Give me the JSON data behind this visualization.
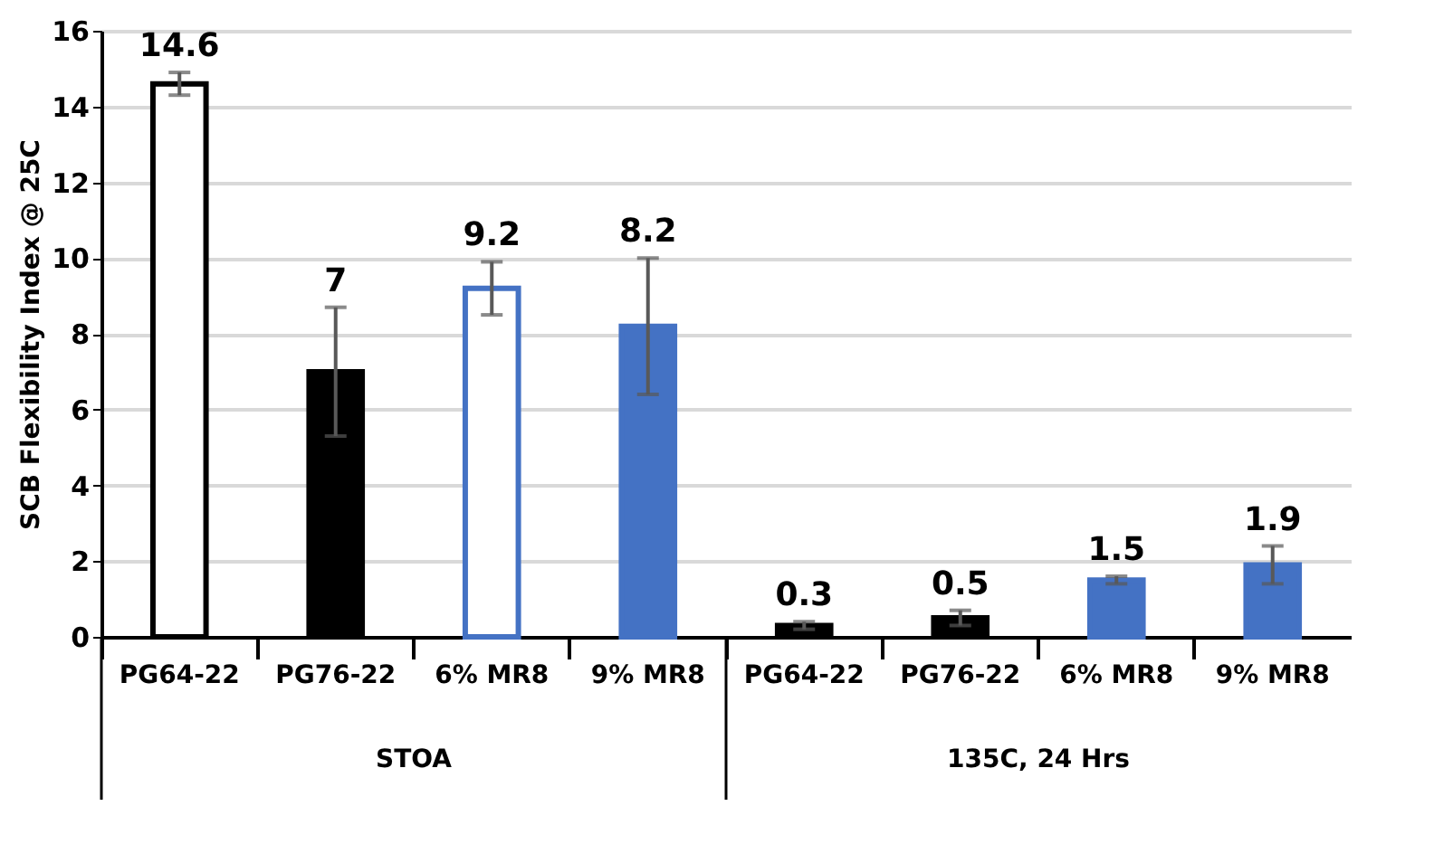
{
  "chart_data": {
    "type": "bar",
    "ylabel": "SCB Flexibility Index @ 25C",
    "categories": [
      "PG64-22",
      "PG76-22",
      "6% MR8",
      "9% MR8",
      "PG64-22",
      "PG76-22",
      "6% MR8",
      "9% MR8"
    ],
    "values": [
      14.6,
      7,
      9.2,
      8.2,
      0.3,
      0.5,
      1.5,
      1.9
    ],
    "colors": [
      "#ffffff",
      "#000000",
      "#ffffff",
      "#4472c4",
      "#000000",
      "#000000",
      "#4472c4",
      "#4472c4"
    ],
    "errors": [
      0.3,
      1.7,
      0.7,
      1.8,
      0.1,
      0.2,
      0.1,
      0.5
    ],
    "ylim": [
      0,
      16
    ],
    "yticks": [
      0,
      2,
      4,
      6,
      8,
      10,
      12,
      14,
      16
    ],
    "grid": "y",
    "data_labels": true,
    "annotations": [
      "STOA",
      "135C, 24 Hrs"
    ]
  }
}
